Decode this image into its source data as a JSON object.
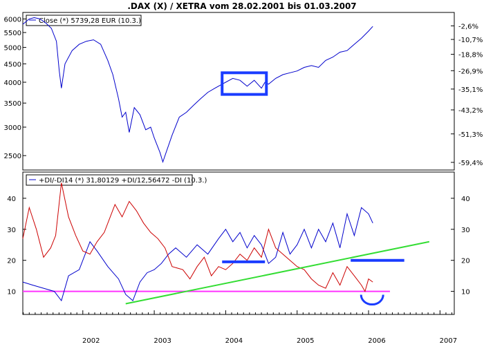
{
  "chart_data": [
    {
      "type": "line",
      "title": ".DAX (X) / XETRA vom 28.02.2001 bis 01.03.2007",
      "legend": "Close (*) 5739,28 EUR (10.3.)",
      "ylim": [
        2300,
        6200
      ],
      "xlim": [
        2001.16,
        2007.2
      ],
      "log_scale": true,
      "grid": false,
      "y_ticks_left": [
        6000,
        5500,
        5000,
        4500,
        4000,
        3500,
        3000,
        2500
      ],
      "y_ticks_right": [
        {
          "label": "-2,6%",
          "value": 5739
        },
        {
          "label": "-10,7%",
          "value": 5262
        },
        {
          "label": "-18,8%",
          "value": 4784
        },
        {
          "label": "-26,9%",
          "value": 4307
        },
        {
          "label": "-35,1%",
          "value": 3829
        },
        {
          "label": "-43,2%",
          "value": 3351
        },
        {
          "label": "-51,3%",
          "value": 2873
        },
        {
          "label": "-59,4%",
          "value": 2394
        }
      ],
      "series": [
        {
          "color": "#0000cc",
          "x": [
            2001.16,
            2001.25,
            2001.32,
            2001.4,
            2001.48,
            2001.56,
            2001.63,
            2001.67,
            2001.7,
            2001.75,
            2001.85,
            2001.95,
            2002.05,
            2002.15,
            2002.25,
            2002.35,
            2002.42,
            2002.5,
            2002.55,
            2002.6,
            2002.65,
            2002.72,
            2002.8,
            2002.88,
            2002.95,
            2003.0,
            2003.08,
            2003.12,
            2003.18,
            2003.25,
            2003.35,
            2003.45,
            2003.55,
            2003.65,
            2003.75,
            2003.85,
            2003.95,
            2004.0,
            2004.1,
            2004.2,
            2004.3,
            2004.4,
            2004.5,
            2004.55,
            2004.6,
            2004.7,
            2004.8,
            2004.9,
            2005.0,
            2005.1,
            2005.2,
            2005.3,
            2005.4,
            2005.5,
            2005.6,
            2005.7,
            2005.8,
            2005.9,
            2006.0,
            2006.06
          ],
          "values": [
            5800,
            6000,
            6050,
            6000,
            5850,
            5650,
            5200,
            4300,
            3850,
            4500,
            4900,
            5100,
            5200,
            5250,
            5100,
            4600,
            4200,
            3600,
            3200,
            3300,
            2900,
            3400,
            3250,
            2950,
            3000,
            2800,
            2550,
            2400,
            2600,
            2850,
            3200,
            3300,
            3450,
            3600,
            3750,
            3850,
            3950,
            4000,
            4100,
            4050,
            3900,
            4050,
            3850,
            4000,
            3950,
            4100,
            4200,
            4250,
            4300,
            4400,
            4450,
            4400,
            4600,
            4700,
            4850,
            4900,
            5100,
            5300,
            5550,
            5720
          ]
        }
      ],
      "annotations": [
        {
          "shape": "rectangle",
          "color": "#1a3cff",
          "x0": 2003.95,
          "x1": 2004.57,
          "y0": 3700,
          "y1": 4250
        }
      ]
    },
    {
      "type": "line",
      "legend": "+DI/-DI14 (*) 31,80129 +DI/12,56472 -DI (10.3.)",
      "ylim": [
        3,
        48
      ],
      "xlim": [
        2001.16,
        2007.2
      ],
      "grid": false,
      "y_ticks": [
        40,
        30,
        20,
        10
      ],
      "x_ticks": [
        "2002",
        "2003",
        "2004",
        "2005",
        "2006",
        "2007"
      ],
      "x_tick_values": [
        2002,
        2003,
        2004,
        2005,
        2006,
        2007
      ],
      "series": [
        {
          "color": "#0000cc",
          "x": [
            2001.16,
            2001.3,
            2001.45,
            2001.6,
            2001.7,
            2001.8,
            2001.95,
            2002.1,
            2002.2,
            2002.35,
            2002.5,
            2002.6,
            2002.7,
            2002.8,
            2002.9,
            2003.0,
            2003.1,
            2003.2,
            2003.3,
            2003.45,
            2003.6,
            2003.75,
            2003.9,
            2004.0,
            2004.1,
            2004.2,
            2004.3,
            2004.4,
            2004.5,
            2004.6,
            2004.7,
            2004.8,
            2004.9,
            2005.0,
            2005.1,
            2005.2,
            2005.3,
            2005.4,
            2005.5,
            2005.6,
            2005.7,
            2005.8,
            2005.9,
            2006.0,
            2006.06
          ],
          "values": [
            13,
            12,
            11,
            10,
            7,
            15,
            17,
            26,
            23,
            18,
            14,
            9,
            7,
            13,
            16,
            17,
            19,
            22,
            24,
            21,
            25,
            22,
            27,
            30,
            26,
            29,
            24,
            28,
            25,
            19,
            21,
            29,
            22,
            25,
            30,
            24,
            30,
            26,
            32,
            24,
            35,
            28,
            37,
            35,
            32
          ]
        },
        {
          "color": "#cc0000",
          "x": [
            2001.16,
            2001.25,
            2001.35,
            2001.45,
            2001.55,
            2001.62,
            2001.7,
            2001.8,
            2001.9,
            2002.0,
            2002.1,
            2002.2,
            2002.3,
            2002.45,
            2002.55,
            2002.65,
            2002.75,
            2002.85,
            2002.95,
            2003.05,
            2003.15,
            2003.25,
            2003.4,
            2003.5,
            2003.6,
            2003.7,
            2003.8,
            2003.9,
            2004.0,
            2004.1,
            2004.2,
            2004.3,
            2004.4,
            2004.5,
            2004.6,
            2004.7,
            2004.8,
            2004.9,
            2005.0,
            2005.1,
            2005.2,
            2005.3,
            2005.4,
            2005.5,
            2005.6,
            2005.7,
            2005.8,
            2005.9,
            2005.95,
            2006.0,
            2006.06
          ],
          "values": [
            27,
            37,
            30,
            21,
            24,
            28,
            45,
            34,
            28,
            23,
            22,
            26,
            29,
            38,
            34,
            39,
            36,
            32,
            29,
            27,
            24,
            18,
            17,
            14,
            18,
            21,
            15,
            18,
            17,
            19,
            22,
            20,
            24,
            21,
            30,
            24,
            22,
            20,
            18,
            17,
            14,
            12,
            11,
            16,
            12,
            18,
            15,
            12,
            10,
            14,
            13
          ]
        }
      ],
      "annotations": [
        {
          "shape": "line",
          "color": "#ff33ff",
          "x0": 2001.16,
          "y0": 10,
          "x1": 2006.3,
          "y1": 10
        },
        {
          "shape": "line",
          "color": "#33dd33",
          "x0": 2002.6,
          "y0": 6,
          "x1": 2006.85,
          "y1": 26
        },
        {
          "shape": "line",
          "color": "#1a3cff",
          "x0": 2003.95,
          "y0": 19.5,
          "x1": 2004.55,
          "y1": 19.5
        },
        {
          "shape": "line",
          "color": "#1a3cff",
          "x0": 2005.75,
          "y0": 20,
          "x1": 2006.5,
          "y1": 20
        },
        {
          "shape": "arc",
          "color": "#1a3cff",
          "cx": 2006.05,
          "cy": 8,
          "r": 6
        }
      ]
    }
  ]
}
